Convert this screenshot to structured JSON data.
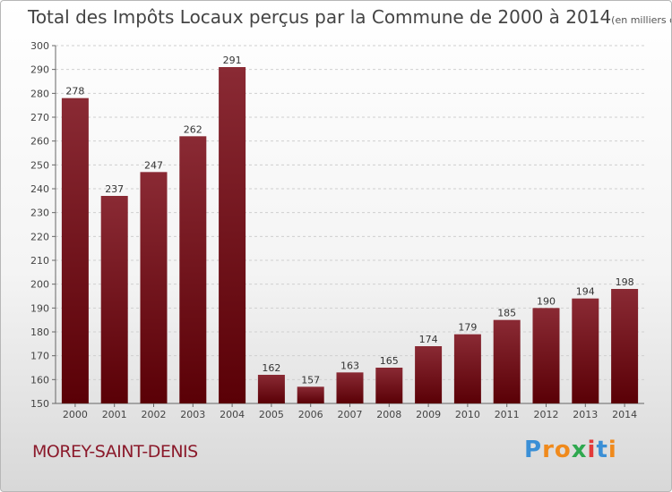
{
  "title": "Total des Impôts Locaux perçus par la Commune de 2000 à 2014",
  "title_unit": "(en milliers d'€)",
  "commune": "MOREY-SAINT-DENIS",
  "logo": {
    "letters": [
      "P",
      "r",
      "o",
      "x",
      "i",
      "t",
      "i"
    ],
    "colors": [
      "#3a8fd6",
      "#f08a1c",
      "#f08a1c",
      "#2fa84f",
      "#e23a3a",
      "#3a8fd6",
      "#f08a1c"
    ]
  },
  "colors": {
    "bar_top": "#8a2a34",
    "bar_bottom": "#5a0006",
    "grid": "#cfcfcf"
  },
  "chart_data": {
    "type": "bar",
    "title": "Total des Impôts Locaux perçus par la Commune de 2000 à 2014",
    "xlabel": "",
    "ylabel": "en milliers d'€",
    "categories": [
      "2000",
      "2001",
      "2002",
      "2003",
      "2004",
      "2005",
      "2006",
      "2007",
      "2008",
      "2009",
      "2010",
      "2011",
      "2012",
      "2013",
      "2014"
    ],
    "values": [
      278,
      237,
      247,
      262,
      291,
      162,
      157,
      163,
      165,
      174,
      179,
      185,
      190,
      194,
      198
    ],
    "ylim": [
      150,
      300
    ],
    "yticks": [
      150,
      160,
      170,
      180,
      190,
      200,
      210,
      220,
      230,
      240,
      250,
      260,
      270,
      280,
      290,
      300
    ],
    "grid": true
  }
}
